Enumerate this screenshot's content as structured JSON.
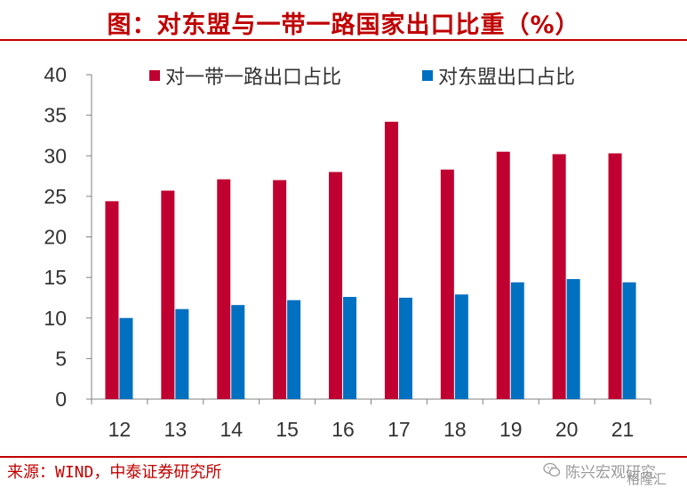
{
  "title": "图：对东盟与一带一路国家出口比重（%）",
  "source": "来源：WIND，中泰证券研究所",
  "watermark": {
    "account": "陈兴宏观研究",
    "brand": "格隆汇"
  },
  "colors": {
    "series1": "#c00030",
    "series2": "#0070c0",
    "accent": "#c00000"
  },
  "chart_data": {
    "type": "bar",
    "categories": [
      "12",
      "13",
      "14",
      "15",
      "16",
      "17",
      "18",
      "19",
      "20",
      "21"
    ],
    "series": [
      {
        "name": "对一带一路出口占比",
        "values": [
          24.4,
          25.7,
          27.1,
          27.0,
          28.0,
          34.2,
          28.3,
          30.5,
          30.2,
          30.3
        ]
      },
      {
        "name": "对东盟出口占比",
        "values": [
          10.0,
          11.1,
          11.6,
          12.2,
          12.6,
          12.5,
          12.9,
          14.4,
          14.8,
          14.4
        ]
      }
    ],
    "yticks": [
      "0",
      "5",
      "10",
      "15",
      "20",
      "25",
      "30",
      "35",
      "40"
    ],
    "ylim": [
      0,
      40
    ],
    "grid": false,
    "legend_position": "top"
  }
}
